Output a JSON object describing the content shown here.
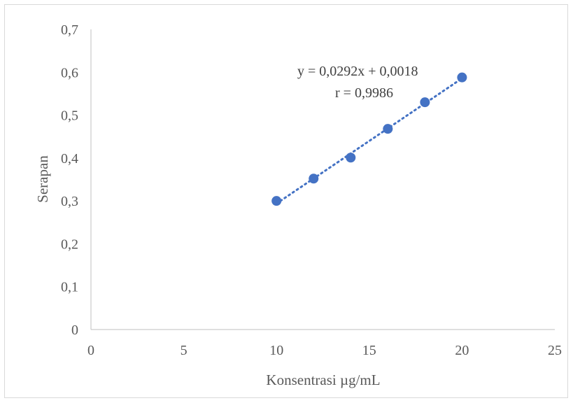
{
  "chart_data": {
    "type": "scatter",
    "title": "",
    "xlabel": "Konsentrasi µg/mL",
    "ylabel": "Serapan",
    "xlim": [
      0,
      25
    ],
    "ylim": [
      0,
      0.7
    ],
    "x_ticks": [
      0,
      5,
      10,
      15,
      20,
      25
    ],
    "y_ticks": [
      0,
      0.1,
      0.2,
      0.3,
      0.4,
      0.5,
      0.6,
      0.7
    ],
    "x_tick_labels": [
      "0",
      "5",
      "10",
      "15",
      "20",
      "25"
    ],
    "y_tick_labels": [
      "0",
      "0,1",
      "0,2",
      "0,3",
      "0,4",
      "0,5",
      "0,6",
      "0,7"
    ],
    "grid": false,
    "series": [
      {
        "x": [
          10,
          12,
          14,
          16,
          18,
          20
        ],
        "y": [
          0.3,
          0.352,
          0.401,
          0.468,
          0.53,
          0.588
        ],
        "color": "#4472c4"
      }
    ],
    "trendline": {
      "type": "linear",
      "slope": 0.0292,
      "intercept": 0.0018,
      "x_range": [
        10,
        20
      ],
      "color": "#4472c4",
      "style": "dotted"
    },
    "annotations": [
      "y = 0,0292x + 0,0018",
      "r = 0,9986"
    ]
  }
}
